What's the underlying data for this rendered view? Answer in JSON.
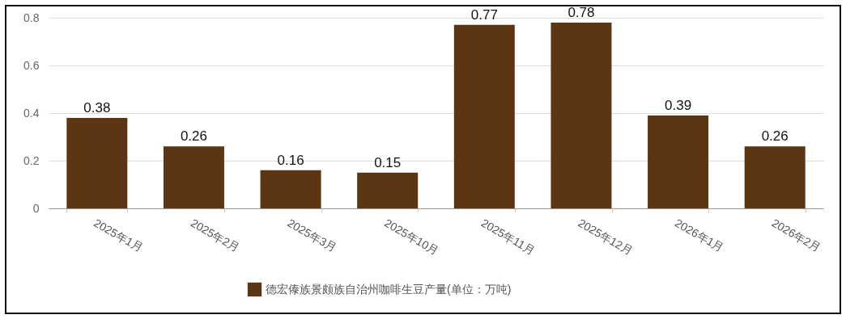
{
  "chart_data": {
    "type": "bar",
    "categories": [
      "2025年1月",
      "2025年2月",
      "2025年3月",
      "2025年10月",
      "2025年11月",
      "2025年12月",
      "2026年1月",
      "2026年2月"
    ],
    "series": [
      {
        "name": "德宏傣族景颇族自治州咖啡生豆产量(单位：万吨)",
        "color": "#5c3613",
        "values": [
          0.38,
          0.26,
          0.16,
          0.15,
          0.77,
          0.78,
          0.39,
          0.26
        ]
      }
    ],
    "ylim": [
      0,
      0.8
    ],
    "yticks": [
      0,
      0.2,
      0.4,
      0.6,
      0.8
    ],
    "grid": "y",
    "legend": "bottom",
    "data_labels": true
  }
}
